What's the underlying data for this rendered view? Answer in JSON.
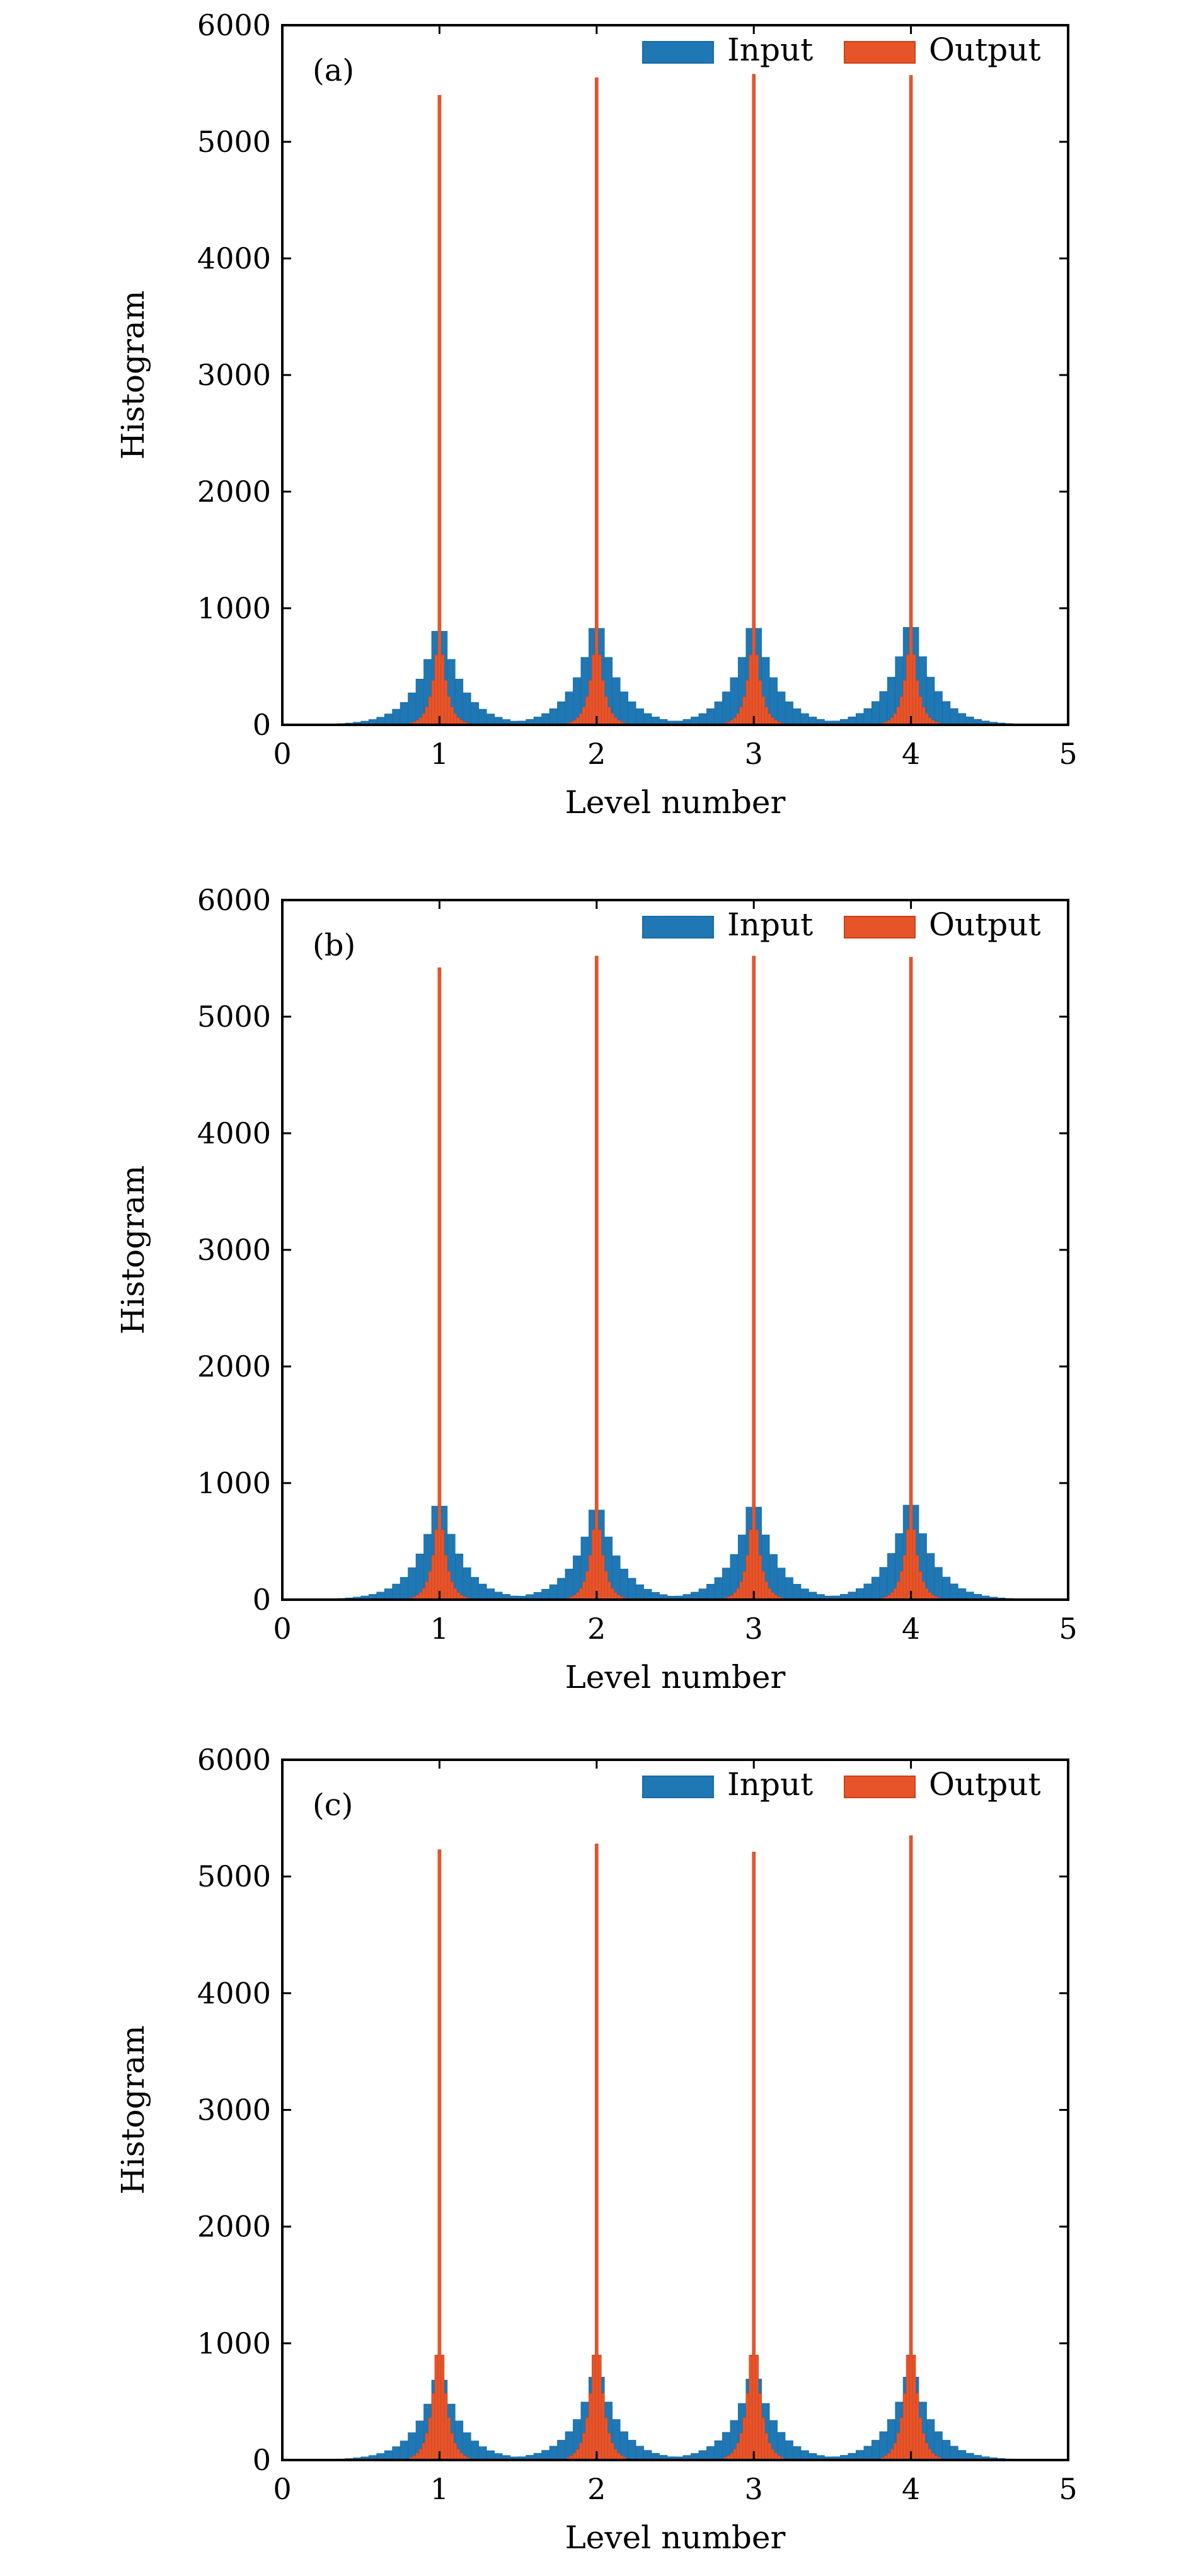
{
  "colors": {
    "input": "#1f77b4",
    "output": "#e8542a"
  },
  "chart_data": [
    {
      "type": "bar",
      "panel_label": "(a)",
      "xlabel": "Level number",
      "ylabel": "Histogram",
      "xlim": [
        0,
        5
      ],
      "ylim": [
        0,
        6000
      ],
      "xticks": [
        "0",
        "1",
        "2",
        "3",
        "4",
        "5"
      ],
      "yticks": [
        "0",
        "1000",
        "2000",
        "3000",
        "4000",
        "5000",
        "6000"
      ],
      "legend": {
        "position": "top-right",
        "entries": [
          "Input",
          "Output"
        ]
      },
      "grid": false,
      "bin_width": 0.05,
      "series": [
        {
          "name": "Input",
          "peak_centers": [
            1,
            2,
            3,
            4
          ],
          "peak_heights": [
            960,
            990,
            990,
            1000
          ],
          "peak_width": 0.14
        },
        {
          "name": "Output",
          "peak_centers": [
            1,
            2,
            3,
            4
          ],
          "peak_heights": [
            5400,
            5550,
            5580,
            5570
          ],
          "side_height": 600
        }
      ]
    },
    {
      "type": "bar",
      "panel_label": "(b)",
      "xlabel": "Level number",
      "ylabel": "Histogram",
      "xlim": [
        0,
        5
      ],
      "ylim": [
        0,
        6000
      ],
      "xticks": [
        "0",
        "1",
        "2",
        "3",
        "4",
        "5"
      ],
      "yticks": [
        "0",
        "1000",
        "2000",
        "3000",
        "4000",
        "5000",
        "6000"
      ],
      "legend": {
        "position": "top-right",
        "entries": [
          "Input",
          "Output"
        ]
      },
      "grid": false,
      "bin_width": 0.05,
      "series": [
        {
          "name": "Input",
          "peak_centers": [
            1,
            2,
            3,
            4
          ],
          "peak_heights": [
            960,
            920,
            950,
            970
          ],
          "peak_width": 0.14
        },
        {
          "name": "Output",
          "peak_centers": [
            1,
            2,
            3,
            4
          ],
          "peak_heights": [
            5420,
            5520,
            5520,
            5510
          ],
          "side_height": 600
        }
      ]
    },
    {
      "type": "bar",
      "panel_label": "(c)",
      "xlabel": "Level number",
      "ylabel": "Histogram",
      "xlim": [
        0,
        5
      ],
      "ylim": [
        0,
        6000
      ],
      "xticks": [
        "0",
        "1",
        "2",
        "3",
        "4",
        "5"
      ],
      "yticks": [
        "0",
        "1000",
        "2000",
        "3000",
        "4000",
        "5000",
        "6000"
      ],
      "legend": {
        "position": "top-right",
        "entries": [
          "Input",
          "Output"
        ]
      },
      "grid": false,
      "bin_width": 0.05,
      "series": [
        {
          "name": "Input",
          "peak_centers": [
            1,
            2,
            3,
            4
          ],
          "peak_heights": [
            820,
            850,
            830,
            850
          ],
          "peak_width": 0.14
        },
        {
          "name": "Output",
          "peak_centers": [
            1,
            2,
            3,
            4
          ],
          "peak_heights": [
            5230,
            5280,
            5210,
            5350
          ],
          "side_height": 900
        }
      ]
    }
  ]
}
